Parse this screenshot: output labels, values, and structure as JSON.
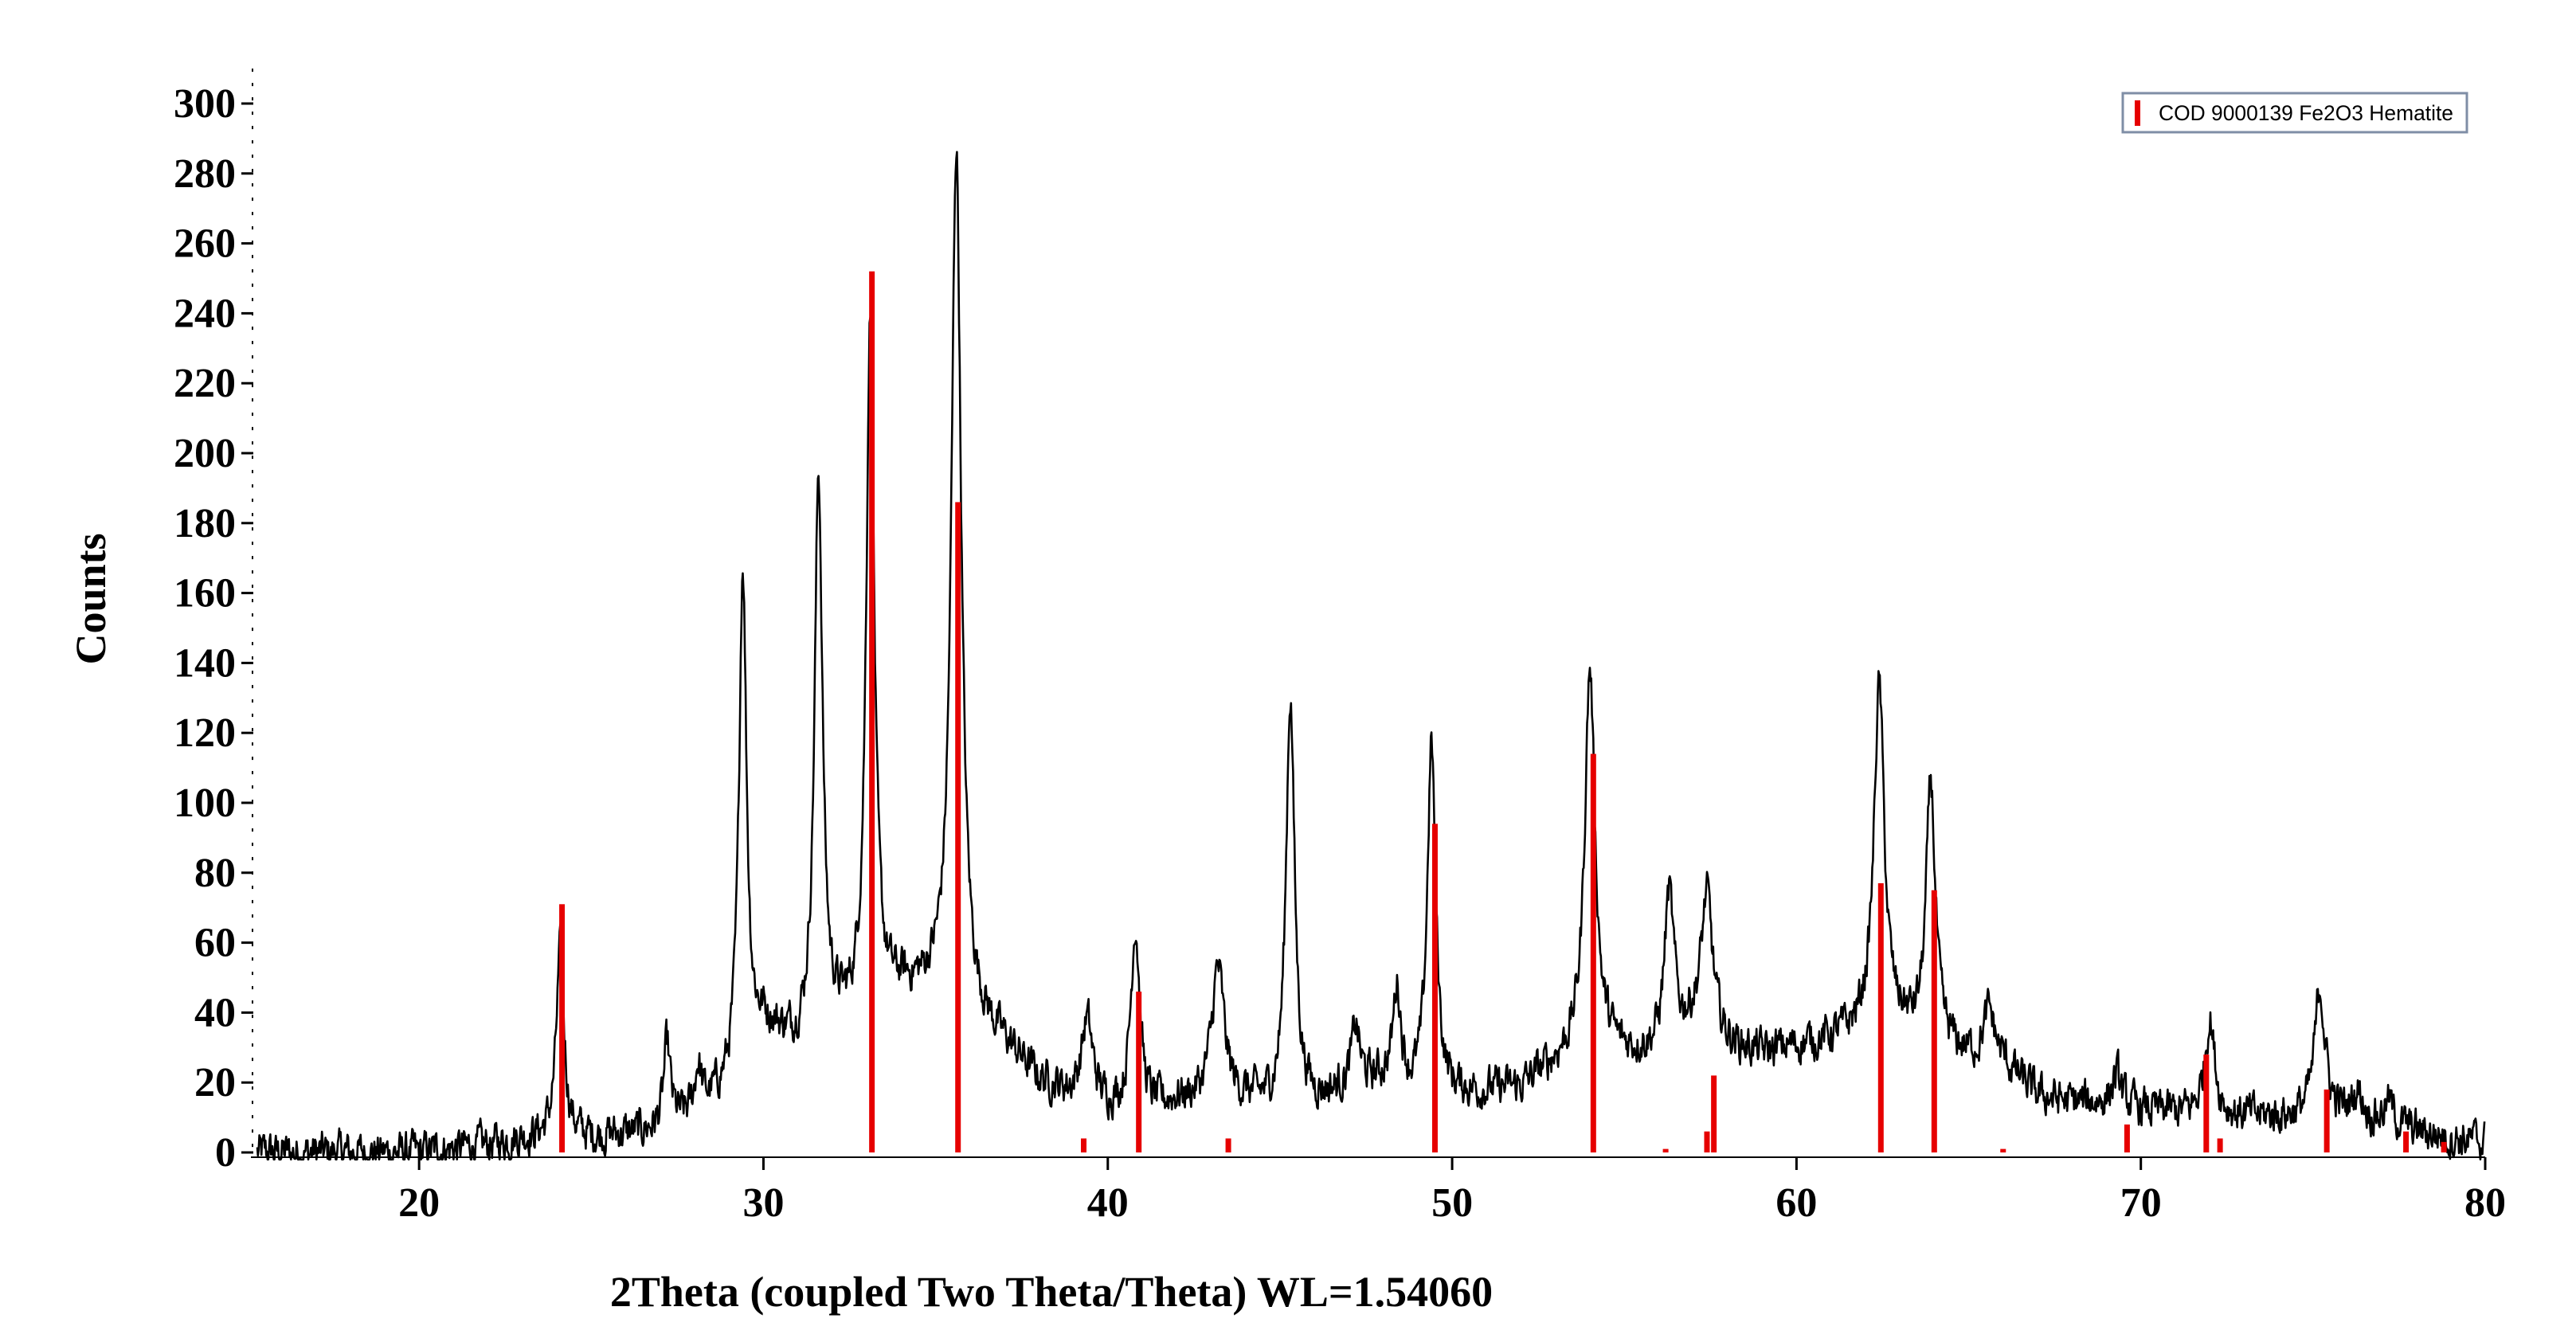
{
  "chart_data": {
    "type": "line",
    "title": "",
    "xlabel": "2Theta (coupled Two Theta/Theta) WL=1.54060",
    "ylabel": "Counts",
    "xlim": [
      15,
      80
    ],
    "ylim": [
      0,
      310
    ],
    "x_ticks": [
      20,
      30,
      40,
      50,
      60,
      70,
      80
    ],
    "y_ticks": [
      0,
      20,
      40,
      60,
      80,
      100,
      120,
      140,
      160,
      180,
      200,
      220,
      240,
      260,
      280,
      300
    ],
    "grid": false,
    "legend": {
      "position": "top-right",
      "entries": [
        "COD 9000139 Fe2O3 Hematite"
      ]
    },
    "background_level": 5,
    "series": [
      {
        "kind": "pattern",
        "color": "#000000",
        "baseline_points": [
          [
            15,
            0
          ],
          [
            18,
            0
          ],
          [
            20,
            0
          ],
          [
            22,
            2
          ],
          [
            23,
            4
          ],
          [
            23.8,
            4
          ],
          [
            25,
            4
          ],
          [
            26,
            5
          ],
          [
            27,
            6
          ],
          [
            28,
            10
          ],
          [
            29,
            18
          ],
          [
            30,
            35
          ],
          [
            31,
            30
          ],
          [
            32,
            35
          ],
          [
            33,
            38
          ],
          [
            34,
            45
          ],
          [
            35,
            45
          ],
          [
            37,
            30
          ],
          [
            38,
            20
          ],
          [
            39,
            15
          ],
          [
            40,
            12
          ],
          [
            41,
            10
          ],
          [
            42,
            14
          ],
          [
            44,
            14
          ],
          [
            45,
            12
          ],
          [
            46,
            14
          ],
          [
            47,
            18
          ],
          [
            48,
            20
          ],
          [
            49,
            15
          ],
          [
            50,
            16
          ],
          [
            51,
            17
          ],
          [
            52,
            18
          ],
          [
            53,
            25
          ],
          [
            54,
            30
          ],
          [
            55,
            28
          ],
          [
            56,
            28
          ],
          [
            57,
            35
          ],
          [
            58,
            30
          ],
          [
            59,
            28
          ],
          [
            60,
            30
          ],
          [
            61,
            32
          ],
          [
            62,
            35
          ],
          [
            63,
            35
          ],
          [
            64,
            30
          ],
          [
            65,
            27
          ],
          [
            66,
            25
          ],
          [
            67,
            16
          ],
          [
            68,
            14
          ],
          [
            69,
            14
          ],
          [
            70,
            12
          ],
          [
            71,
            11
          ],
          [
            72,
            10
          ],
          [
            73,
            10
          ],
          [
            74,
            10
          ],
          [
            75,
            10
          ],
          [
            76,
            10
          ],
          [
            77,
            8
          ],
          [
            78,
            6
          ],
          [
            79,
            4
          ],
          [
            80,
            3
          ]
        ],
        "peaks": [
          {
            "x": 24.1,
            "y": 57,
            "w": 0.14
          },
          {
            "x": 27.2,
            "y": 30,
            "w": 0.12
          },
          {
            "x": 28.1,
            "y": 24,
            "w": 0.12
          },
          {
            "x": 29.4,
            "y": 168,
            "w": 0.13
          },
          {
            "x": 31.6,
            "y": 192,
            "w": 0.14
          },
          {
            "x": 33.1,
            "y": 238,
            "w": 0.14
          },
          {
            "x": 35.6,
            "y": 287,
            "w": 0.17
          },
          {
            "x": 39.4,
            "y": 37,
            "w": 0.2
          },
          {
            "x": 40.8,
            "y": 64,
            "w": 0.16
          },
          {
            "x": 43.2,
            "y": 52,
            "w": 0.22
          },
          {
            "x": 45.3,
            "y": 130,
            "w": 0.15
          },
          {
            "x": 47.2,
            "y": 35,
            "w": 0.14
          },
          {
            "x": 48.4,
            "y": 46,
            "w": 0.14
          },
          {
            "x": 49.4,
            "y": 116,
            "w": 0.15
          },
          {
            "x": 54.0,
            "y": 138,
            "w": 0.18
          },
          {
            "x": 56.3,
            "y": 73,
            "w": 0.17
          },
          {
            "x": 57.4,
            "y": 73,
            "w": 0.2
          },
          {
            "x": 62.4,
            "y": 133,
            "w": 0.18
          },
          {
            "x": 63.9,
            "y": 105,
            "w": 0.16
          },
          {
            "x": 65.6,
            "y": 40,
            "w": 0.2
          },
          {
            "x": 69.3,
            "y": 22,
            "w": 0.16
          },
          {
            "x": 72.0,
            "y": 38,
            "w": 0.18
          },
          {
            "x": 75.2,
            "y": 47,
            "w": 0.18
          },
          {
            "x": 76.3,
            "y": 17,
            "w": 0.18
          },
          {
            "x": 77.2,
            "y": 14,
            "w": 0.18
          }
        ]
      },
      {
        "name": "COD 9000139 Fe2O3 Hematite",
        "kind": "sticks",
        "color": "#e60000",
        "sticks": [
          {
            "x": 24.15,
            "y": 71
          },
          {
            "x": 33.15,
            "y": 252
          },
          {
            "x": 35.65,
            "y": 186
          },
          {
            "x": 39.3,
            "y": 4
          },
          {
            "x": 40.9,
            "y": 46
          },
          {
            "x": 43.5,
            "y": 4
          },
          {
            "x": 49.5,
            "y": 94
          },
          {
            "x": 54.1,
            "y": 114
          },
          {
            "x": 56.2,
            "y": 1
          },
          {
            "x": 57.4,
            "y": 6
          },
          {
            "x": 57.6,
            "y": 22
          },
          {
            "x": 62.45,
            "y": 77
          },
          {
            "x": 64.0,
            "y": 75
          },
          {
            "x": 66.0,
            "y": 1
          },
          {
            "x": 69.6,
            "y": 8
          },
          {
            "x": 71.9,
            "y": 28
          },
          {
            "x": 72.3,
            "y": 4
          },
          {
            "x": 75.4,
            "y": 18
          },
          {
            "x": 77.7,
            "y": 6
          },
          {
            "x": 78.8,
            "y": 3
          }
        ]
      }
    ]
  }
}
